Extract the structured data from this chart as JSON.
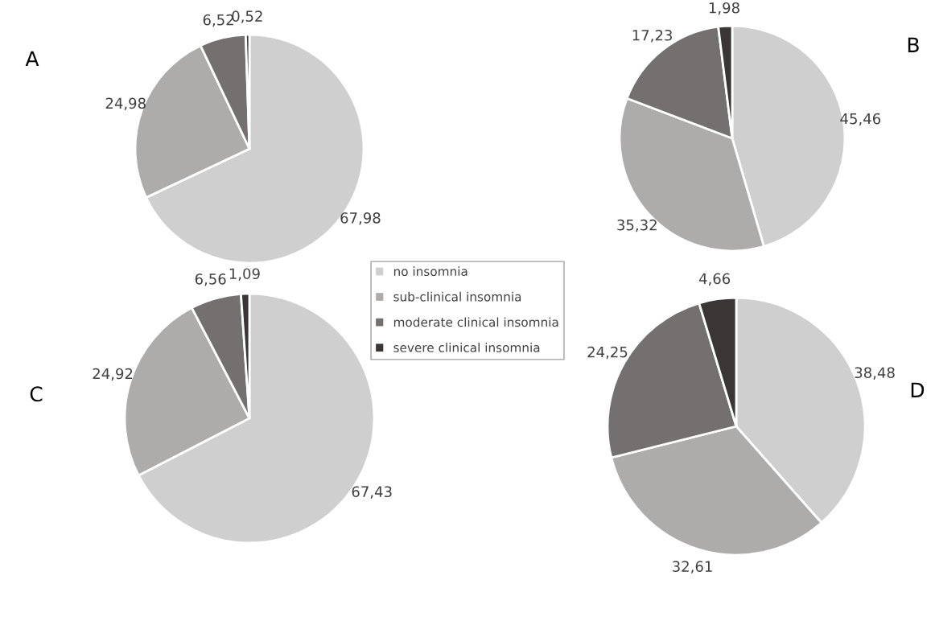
{
  "chart_data": [
    {
      "type": "pie",
      "title": "A",
      "categories": [
        "no insomnia",
        "sub-clinical insomnia",
        "moderate clinical insomnia",
        "severe clinical insomnia"
      ],
      "values": [
        67.98,
        24.98,
        6.52,
        0.52
      ],
      "value_labels": [
        "67,98",
        "24,98",
        "6,52",
        "0,52"
      ],
      "colors": [
        "#d0cfcf",
        "#aeacab",
        "#757070",
        "#3a3636"
      ],
      "legend": "bottom right"
    },
    {
      "type": "pie",
      "title": "B",
      "values": [
        45.46,
        35.32,
        17.23,
        1.98
      ],
      "value_labels": [
        "45,46",
        "35,32",
        "17,23",
        "1,98"
      ],
      "colors": [
        "#d0cfcf",
        "#aeacab",
        "#757070",
        "#3a3636"
      ]
    },
    {
      "type": "pie",
      "title": "C",
      "values": [
        67.43,
        24.92,
        6.56,
        1.09
      ],
      "value_labels": [
        "67,43",
        "24,92",
        "6,56",
        "1,09"
      ],
      "colors": [
        "#d0cfcf",
        "#aeacab",
        "#757070",
        "#3a3636"
      ]
    },
    {
      "type": "pie",
      "title": "D",
      "values": [
        38.48,
        32.61,
        24.25,
        4.66
      ],
      "value_labels": [
        "38,48",
        "32,61",
        "24,25",
        "4,66"
      ],
      "colors": [
        "#d0cfcf",
        "#aeacab",
        "#757070",
        "#3a3636"
      ]
    }
  ]
}
